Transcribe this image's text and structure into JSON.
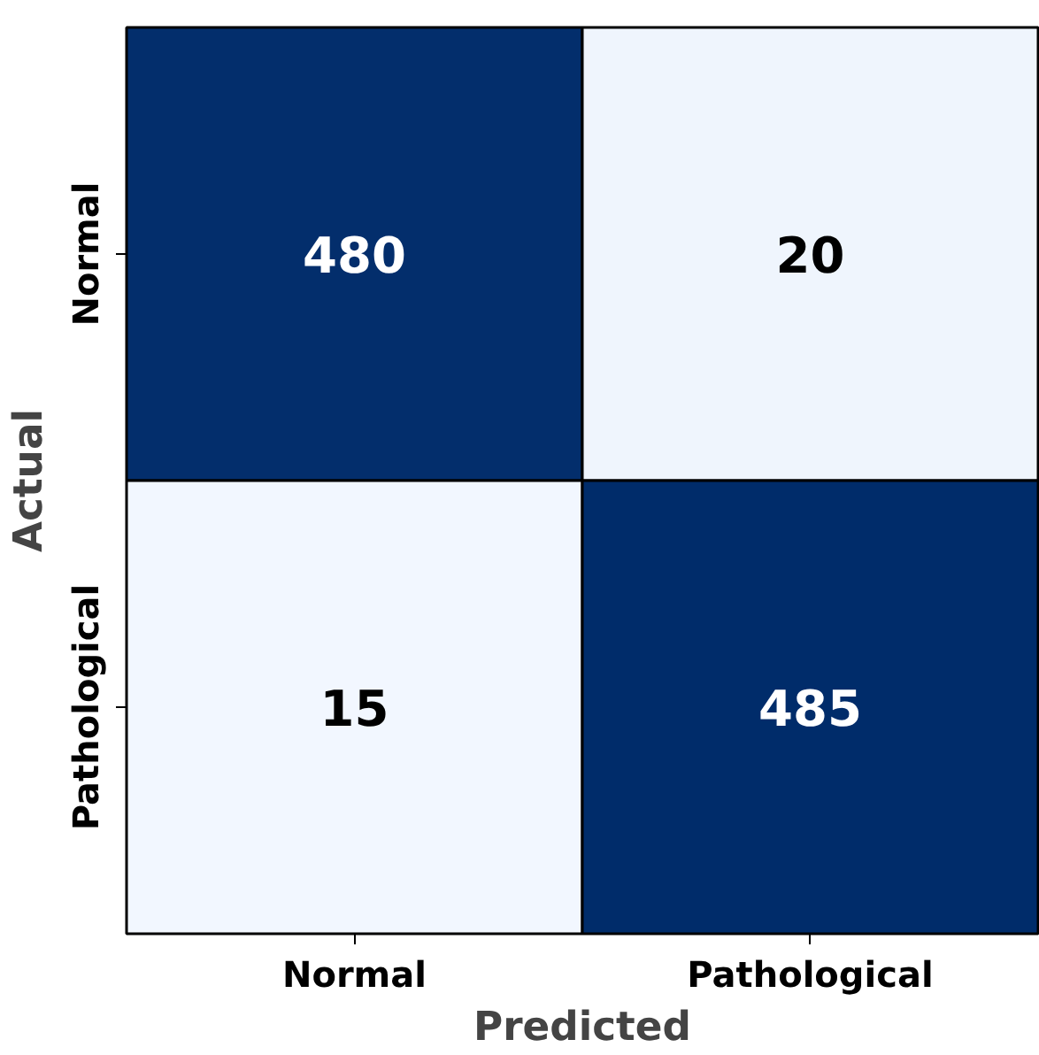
{
  "chart_data": {
    "type": "heatmap",
    "xlabel": "Predicted",
    "ylabel": "Actual",
    "categories": [
      "Normal",
      "Pathological"
    ],
    "y_categories": [
      "Normal",
      "Pathological"
    ],
    "cells": [
      [
        480,
        20
      ],
      [
        15,
        485
      ]
    ],
    "colors": [
      "#f2f7ff",
      "#002c6a"
    ],
    "data_labels": true
  }
}
